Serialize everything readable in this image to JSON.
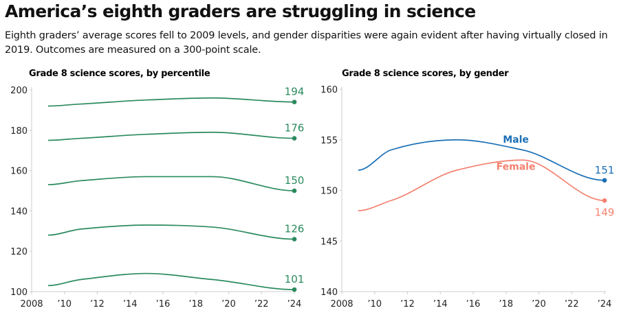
{
  "title": "America’s eighth graders are struggling in science",
  "subtitle": "Eighth graders’ average scores fell to 2009 levels, and gender disparities were again evident after having virtually closed in 2019. Outcomes are measured on a 300-point scale.",
  "chart_data": [
    {
      "type": "line",
      "title": "Grade 8 science scores, by percentile",
      "x": [
        2009,
        2011,
        2015,
        2019,
        2024
      ],
      "xlim": [
        2008,
        2024
      ],
      "x_ticks": [
        "2008",
        "’10",
        "’12",
        "’14",
        "’16",
        "’18",
        "’20",
        "’22",
        "’24"
      ],
      "ylim": [
        100,
        200
      ],
      "y_ticks": [
        "100",
        "120",
        "140",
        "160",
        "180",
        "200"
      ],
      "grid": false,
      "color": "#2a8a5e",
      "series": [
        {
          "values": [
            192,
            193,
            195,
            196,
            194
          ],
          "end_label": "194"
        },
        {
          "values": [
            175,
            176,
            178,
            179,
            176
          ],
          "end_label": "176"
        },
        {
          "values": [
            153,
            155,
            157,
            157,
            150
          ],
          "end_label": "150"
        },
        {
          "values": [
            128,
            131,
            133,
            132,
            126
          ],
          "end_label": "126"
        },
        {
          "values": [
            103,
            106,
            109,
            106,
            101
          ],
          "end_label": "101"
        }
      ]
    },
    {
      "type": "line",
      "title": "Grade 8 science scores, by gender",
      "x": [
        2009,
        2011,
        2015,
        2019,
        2024
      ],
      "xlim": [
        2008,
        2024
      ],
      "x_ticks": [
        "2008",
        "’10",
        "’12",
        "’14",
        "’16",
        "’18",
        "’20",
        "’22",
        "’24"
      ],
      "ylim": [
        140,
        160
      ],
      "y_ticks": [
        "140",
        "145",
        "150",
        "155",
        "160"
      ],
      "grid": false,
      "series": [
        {
          "name": "Male",
          "values": [
            152,
            154,
            155,
            154,
            151
          ],
          "end_label": "151",
          "color": "#1a6fb5"
        },
        {
          "name": "Female",
          "values": [
            148,
            149,
            152,
            153,
            149
          ],
          "end_label": "149",
          "color": "#f4806e"
        }
      ]
    }
  ]
}
